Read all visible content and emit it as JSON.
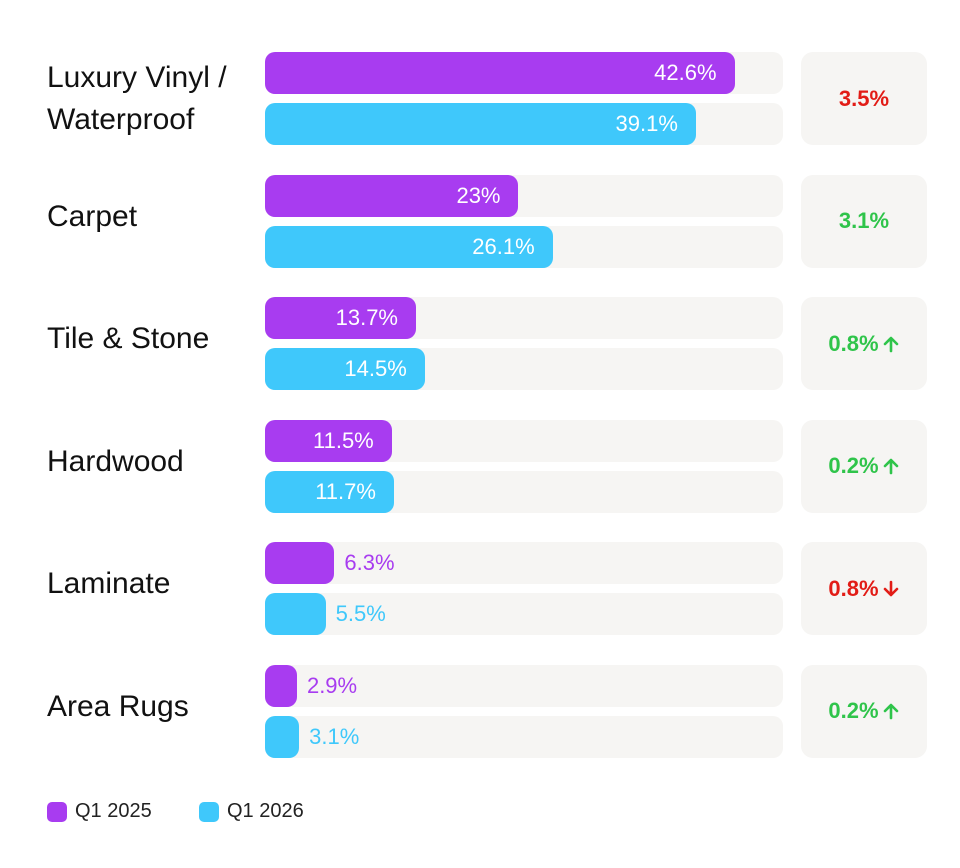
{
  "chart_data": {
    "type": "bar",
    "orientation": "horizontal",
    "categories": [
      "Luxury Vinyl / Waterproof",
      "Carpet",
      "Tile & Stone",
      "Hardwood",
      "Laminate",
      "Area Rugs"
    ],
    "series": [
      {
        "name": "Q1 2025",
        "values": [
          42.6,
          23,
          13.7,
          11.5,
          6.3,
          2.9
        ],
        "labels": [
          "42.6%",
          "23%",
          "13.7%",
          "11.5%",
          "6.3%",
          "2.9%"
        ]
      },
      {
        "name": "Q1 2026",
        "values": [
          39.1,
          26.1,
          14.5,
          11.7,
          5.5,
          3.1
        ],
        "labels": [
          "39.1%",
          "26.1%",
          "14.5%",
          "11.7%",
          "5.5%",
          "3.1%"
        ]
      }
    ],
    "changes": [
      {
        "label": "3.5%",
        "direction": "",
        "trend": "negative"
      },
      {
        "label": "3.1%",
        "direction": "",
        "trend": "positive"
      },
      {
        "label": "0.8%",
        "direction": "up",
        "trend": "positive"
      },
      {
        "label": "0.2%",
        "direction": "up",
        "trend": "positive"
      },
      {
        "label": "0.8%",
        "direction": "down",
        "trend": "negative"
      },
      {
        "label": "0.2%",
        "direction": "up",
        "trend": "positive"
      }
    ],
    "xlim": [
      0,
      47
    ],
    "grid": false,
    "legend_position": "bottom-left",
    "colors": {
      "series": [
        "#a83cf0",
        "#3fc8fb"
      ],
      "track": "#f6f5f3",
      "positive": "#2fc44a",
      "negative": "#e21c16",
      "label_inside": "#ffffff"
    }
  }
}
